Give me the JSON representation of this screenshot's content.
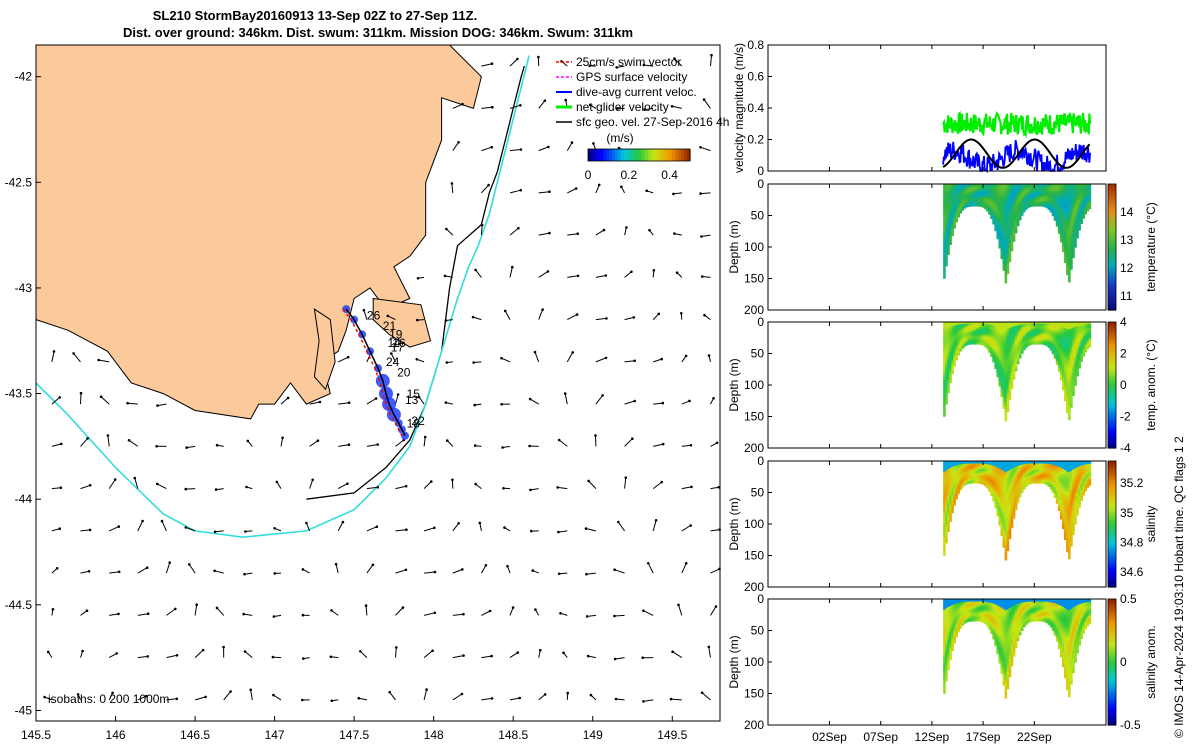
{
  "title": {
    "line1": "SL210 StormBay20160913 13-Sep 02Z to 27-Sep 11Z.",
    "line2": "Dist. over ground: 346km. Dist. swum: 311km. Mission DOG: 346km. Swum: 311km"
  },
  "footer": {
    "credit": "© IMOS 14-Apr-2024 19:03:10 Hobart time. QC flags 1  2"
  },
  "chart_data": [
    {
      "type": "map",
      "name": "track-map",
      "xlim": [
        145.5,
        149.8
      ],
      "ylim": [
        -45.05,
        -41.85
      ],
      "xticks": [
        145.5,
        146,
        146.5,
        147,
        147.5,
        148,
        148.5,
        149,
        149.5
      ],
      "yticks": [
        -42,
        -42.5,
        -43,
        -43.5,
        -44,
        -44.5,
        -45
      ],
      "legend": [
        {
          "label": "25cm/s swim vector",
          "color": "#ff0000"
        },
        {
          "label": "GPS surface velocity",
          "color": "#ff00ff"
        },
        {
          "label": "dive-avg current veloc.",
          "color": "#0000ff"
        },
        {
          "label": "net glider velocity",
          "color": "#00ee00"
        },
        {
          "label": "sfc geo. vel. 27-Sep-2016 4h",
          "color": "#000000"
        }
      ],
      "colorbar": {
        "title": "(m/s)",
        "ticks": [
          0,
          0.2,
          0.4
        ],
        "range": [
          0,
          0.5
        ]
      },
      "isobaths_label": "isobaths: 0   200  1000m",
      "isobaths": {
        "200m": {
          "lon": [
            147.2,
            147.5,
            147.7,
            147.85,
            147.95,
            148.05,
            148.1,
            148.15,
            148.3,
            148.35,
            148.4,
            148.45,
            148.5,
            148.55,
            148.57
          ],
          "lat": [
            -44.0,
            -43.97,
            -43.85,
            -43.72,
            -43.55,
            -43.3,
            -43.0,
            -42.8,
            -42.7,
            -42.55,
            -42.45,
            -42.3,
            -42.15,
            -42.0,
            -41.95
          ]
        },
        "1000m": {
          "lon": [
            145.5,
            145.7,
            146.0,
            146.3,
            146.5,
            146.8,
            147.2,
            147.5,
            147.7,
            147.85,
            147.95,
            148.05,
            148.15,
            148.22,
            148.28,
            148.35,
            148.4,
            148.45,
            148.5,
            148.55,
            148.6
          ],
          "lat": [
            -43.45,
            -43.6,
            -43.85,
            -44.07,
            -44.15,
            -44.18,
            -44.15,
            -44.05,
            -43.9,
            -43.75,
            -43.55,
            -43.3,
            -43.05,
            -42.9,
            -42.8,
            -42.65,
            -42.5,
            -42.35,
            -42.2,
            -42.05,
            -41.9
          ]
        }
      },
      "track": {
        "lon": [
          147.45,
          147.5,
          147.55,
          147.6,
          147.65,
          147.68,
          147.7,
          147.72,
          147.75,
          147.78,
          147.8,
          147.82
        ],
        "lat": [
          -43.1,
          -43.15,
          -43.22,
          -43.3,
          -43.38,
          -43.44,
          -43.5,
          -43.55,
          -43.6,
          -43.64,
          -43.67,
          -43.7
        ]
      },
      "day_labels": [
        {
          "text": "26",
          "lon": 147.58,
          "lat": -43.15
        },
        {
          "text": "21",
          "lon": 147.68,
          "lat": -43.2
        },
        {
          "text": "19",
          "lon": 147.72,
          "lat": -43.24
        },
        {
          "text": "14",
          "lon": 147.71,
          "lat": -43.28
        },
        {
          "text": "16",
          "lon": 147.74,
          "lat": -43.28
        },
        {
          "text": "17",
          "lon": 147.73,
          "lat": -43.3
        },
        {
          "text": "24",
          "lon": 147.7,
          "lat": -43.37
        },
        {
          "text": "20",
          "lon": 147.77,
          "lat": -43.42
        },
        {
          "text": "15",
          "lon": 147.83,
          "lat": -43.52
        },
        {
          "text": "13",
          "lon": 147.82,
          "lat": -43.55
        },
        {
          "text": "22",
          "lon": 147.86,
          "lat": -43.65
        },
        {
          "text": "18",
          "lon": 147.83,
          "lat": -43.66
        }
      ]
    },
    {
      "type": "line",
      "name": "velocity",
      "ylabel": "velocity magnitude (m/s)",
      "ylim": [
        0,
        0.8
      ],
      "yticks": [
        0,
        0.2,
        0.4,
        0.6,
        0.8
      ],
      "xlim": [
        -4,
        29
      ],
      "series": [
        {
          "name": "net glider velocity",
          "color": "#00ee00",
          "mean": 0.3,
          "spread": 0.07
        },
        {
          "name": "dive-avg current",
          "color": "#0000ff",
          "mean": 0.08,
          "spread": 0.07
        },
        {
          "name": "sfc geo. vel.",
          "color": "#000000",
          "period_days": 6.2,
          "amp": 0.09,
          "mean": 0.11
        }
      ],
      "data_start_day": 13.1,
      "data_end_day": 27.5
    },
    {
      "type": "heatmap",
      "name": "temperature",
      "ylabel": "Depth (m)",
      "cbar_label": "temperature (°C)",
      "ylim": [
        200,
        0
      ],
      "yticks": [
        0,
        50,
        100,
        150,
        200
      ],
      "cbar_range": [
        10.5,
        15
      ],
      "cbar_ticks": [
        11,
        12,
        13,
        14
      ],
      "colormap": "temp",
      "base": 12.6,
      "var": 0.6
    },
    {
      "type": "heatmap",
      "name": "temperature-anomaly",
      "ylabel": "Depth (m)",
      "cbar_label": "temp. anom. (°C)",
      "ylim": [
        200,
        0
      ],
      "yticks": [
        0,
        50,
        100,
        150,
        200
      ],
      "cbar_range": [
        -4,
        4
      ],
      "cbar_ticks": [
        -4,
        -2,
        0,
        2,
        4
      ],
      "colormap": "jet",
      "base": 0.5,
      "var": 1.0
    },
    {
      "type": "heatmap",
      "name": "salinity",
      "ylabel": "Depth (m)",
      "cbar_label": "salinity",
      "ylim": [
        200,
        0
      ],
      "yticks": [
        0,
        50,
        100,
        150,
        200
      ],
      "cbar_range": [
        34.5,
        35.35
      ],
      "cbar_ticks": [
        34.6,
        34.8,
        35,
        35.2
      ],
      "colormap": "jet",
      "base": 35.1,
      "var": 0.12
    },
    {
      "type": "heatmap",
      "name": "salinity-anomaly",
      "ylabel": "Depth (m)",
      "cbar_label": "salinity anom.",
      "ylim": [
        200,
        0
      ],
      "yticks": [
        0,
        50,
        100,
        150,
        200
      ],
      "cbar_range": [
        -0.5,
        0.5
      ],
      "cbar_ticks": [
        -0.5,
        0,
        0.5
      ],
      "colormap": "jet",
      "base": 0.12,
      "var": 0.12
    }
  ],
  "time_axis": {
    "ticks": [
      {
        "day": 2,
        "label": "02Sep"
      },
      {
        "day": 7,
        "label": "07Sep"
      },
      {
        "day": 12,
        "label": "12Sep"
      },
      {
        "day": 17,
        "label": "17Sep"
      },
      {
        "day": 22,
        "label": "22Sep"
      }
    ]
  }
}
